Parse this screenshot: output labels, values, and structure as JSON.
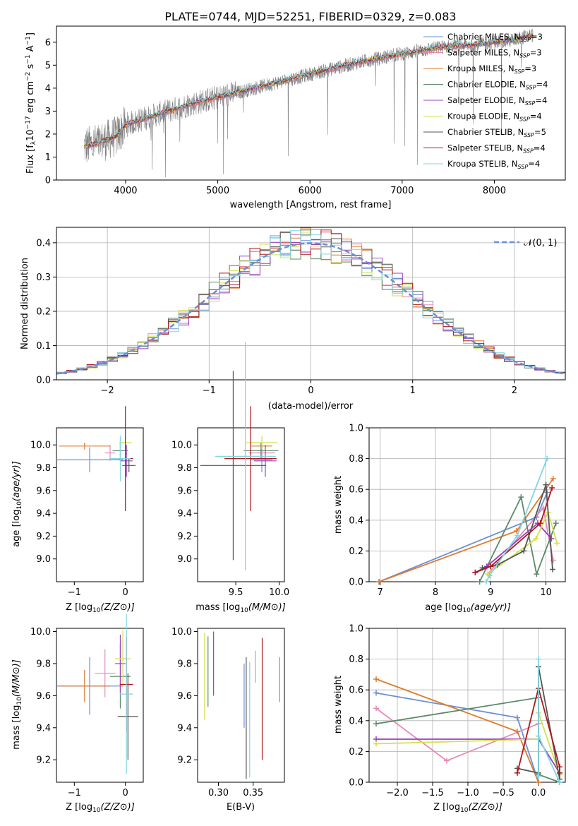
{
  "title": "PLATE=0744, MJD=52251, FIBERID=0329, z=0.083",
  "colors": {
    "chabrier_miles": "#6a8fd8",
    "salpeter_miles": "#e58ab8",
    "kroupa_miles": "#e07b2a",
    "chabrier_elodie": "#5a8a6a",
    "salpeter_elodie": "#9b3fbf",
    "kroupa_elodie": "#d4e04a",
    "chabrier_stelib": "#555555",
    "salpeter_stelib": "#b01818",
    "kroupa_stelib": "#7fd6e0",
    "data": "#808080",
    "normal": "#6a8fd8"
  },
  "chart_data": [
    {
      "id": "spectrum",
      "type": "line",
      "xlabel": "wavelength [Angstrom, rest frame]",
      "xlim": [
        3250,
        8770
      ],
      "ylim": [
        0,
        6.7
      ],
      "xticks": [
        "4000",
        "5000",
        "6000",
        "7000",
        "8000"
      ],
      "yticks": [
        "0",
        "1",
        "2",
        "3",
        "4",
        "5",
        "6"
      ],
      "xtick_values": [
        4000,
        5000,
        6000,
        7000,
        8000
      ],
      "ytick_values": [
        0,
        1,
        2,
        3,
        4,
        5,
        6
      ],
      "legend_position": "top-right",
      "legend": [
        {
          "pre": "Chabrier MILES, N",
          "sub": "SSP",
          "post": "=3",
          "color": "#6a8fd8"
        },
        {
          "pre": "Salpeter MILES, N",
          "sub": "SSP",
          "post": "=3",
          "color": "#e58ab8"
        },
        {
          "pre": "Kroupa MILES, N",
          "sub": "SSP",
          "post": "=3",
          "color": "#e07b2a"
        },
        {
          "pre": "Chabrier ELODIE, N",
          "sub": "SSP",
          "post": "=4",
          "color": "#5a8a6a"
        },
        {
          "pre": "Salpeter ELODIE, N",
          "sub": "SSP",
          "post": "=4",
          "color": "#9b3fbf"
        },
        {
          "pre": "Kroupa ELODIE, N",
          "sub": "SSP",
          "post": "=4",
          "color": "#d4e04a"
        },
        {
          "pre": "Chabrier STELIB, N",
          "sub": "SSP",
          "post": "=5",
          "color": "#555555"
        },
        {
          "pre": "Salpeter STELIB, N",
          "sub": "SSP",
          "post": "=4",
          "color": "#b01818"
        },
        {
          "pre": "Kroupa STELIB, N",
          "sub": "SSP",
          "post": "=4",
          "color": "#7fd6e0"
        }
      ],
      "continuum": [
        [
          3550,
          1.45
        ],
        [
          3700,
          1.6
        ],
        [
          3900,
          1.9
        ],
        [
          4000,
          2.4
        ],
        [
          4300,
          2.8
        ],
        [
          4700,
          3.3
        ],
        [
          5000,
          3.6
        ],
        [
          5500,
          4.1
        ],
        [
          6000,
          4.6
        ],
        [
          6500,
          5.1
        ],
        [
          7000,
          5.5
        ],
        [
          7450,
          5.8
        ],
        [
          7800,
          5.9
        ],
        [
          8200,
          6.1
        ],
        [
          8400,
          6.3
        ]
      ]
    },
    {
      "id": "residuals",
      "type": "step",
      "xlabel": "(data-model)/error",
      "ylabel": "Normed distribution",
      "xlim": [
        -2.5,
        2.5
      ],
      "ylim": [
        0,
        0.445
      ],
      "xticks": [
        "−2",
        "−1",
        "0",
        "1",
        "2"
      ],
      "yticks": [
        "0.0",
        "0.1",
        "0.2",
        "0.3",
        "0.4"
      ],
      "xtick_values": [
        -2,
        -1,
        0,
        1,
        2
      ],
      "ytick_values": [
        0,
        0.1,
        0.2,
        0.3,
        0.4
      ],
      "grid": true,
      "legend_position": "top-right",
      "legend_label": "𝒩(0, 1)",
      "bin_width": 0.1,
      "bin_start": -2.5
    },
    {
      "id": "age_vs_Z",
      "type": "errorbar",
      "xlabel_pre": "Z [log",
      "xlabel_sub": "10",
      "xlabel_post": "(Z/Z⊙)]",
      "ylabel_pre": "age  [log",
      "ylabel_sub": "10",
      "ylabel_post": "(age/yr)]",
      "xlim": [
        -1.35,
        0.35
      ],
      "ylim": [
        8.8,
        10.15
      ],
      "xticks": [
        "−1",
        "0"
      ],
      "yticks": [
        "9.0",
        "9.2",
        "9.4",
        "9.6",
        "9.8",
        "10.0"
      ],
      "xtick_values": [
        -1,
        0
      ],
      "ytick_values": [
        9.0,
        9.2,
        9.4,
        9.6,
        9.8,
        10.0
      ],
      "points": [
        {
          "x": -0.7,
          "xerr": 0.65,
          "y": 9.87,
          "yerr": 0.11,
          "c": "#6a8fd8"
        },
        {
          "x": -0.3,
          "xerr": 0.1,
          "y": 9.93,
          "yerr": 0.07,
          "c": "#e58ab8"
        },
        {
          "x": -0.8,
          "xerr": 0.5,
          "y": 9.99,
          "yerr": 0.03,
          "c": "#e07b2a"
        },
        {
          "x": -0.1,
          "xerr": 0.15,
          "y": 9.95,
          "yerr": 0.07,
          "c": "#5a8a6a"
        },
        {
          "x": 0.02,
          "xerr": 0.12,
          "y": 9.86,
          "yerr": 0.14,
          "c": "#9b3fbf"
        },
        {
          "x": 0.0,
          "xerr": 0.12,
          "y": 10.02,
          "yerr": 0.06,
          "c": "#d4e04a"
        },
        {
          "x": 0.07,
          "xerr": 0.13,
          "y": 9.82,
          "yerr": 0.06,
          "c": "#555555"
        },
        {
          "x": 0.0,
          "xerr": 0.15,
          "y": 9.88,
          "yerr": 0.46,
          "c": "#b01818"
        },
        {
          "x": -0.1,
          "xerr": 0.2,
          "y": 9.88,
          "yerr": 0.2,
          "c": "#7fd6e0"
        }
      ]
    },
    {
      "id": "age_vs_mass",
      "type": "errorbar",
      "xlabel_pre": "mass [log",
      "xlabel_sub": "10",
      "xlabel_post": "(M/M⊙)]",
      "xlim": [
        9.06,
        10.06
      ],
      "ylim": [
        8.8,
        10.15
      ],
      "xticks": [
        "9.5",
        "10.0"
      ],
      "yticks": [
        "9.0",
        "9.2",
        "9.4",
        "9.6",
        "9.8",
        "10.0"
      ],
      "xtick_values": [
        9.5,
        10.0
      ],
      "ytick_values": [
        9.0,
        9.2,
        9.4,
        9.6,
        9.8,
        10.0
      ],
      "points": [
        {
          "x": 9.8,
          "xerr": 0.12,
          "y": 9.87,
          "yerr": 0.11,
          "c": "#6a8fd8"
        },
        {
          "x": 9.8,
          "xerr": 0.15,
          "y": 9.93,
          "yerr": 0.07,
          "c": "#e58ab8"
        },
        {
          "x": 9.8,
          "xerr": 0.12,
          "y": 9.99,
          "yerr": 0.03,
          "c": "#e07b2a"
        },
        {
          "x": 9.79,
          "xerr": 0.2,
          "y": 9.95,
          "yerr": 0.07,
          "c": "#5a8a6a"
        },
        {
          "x": 9.84,
          "xerr": 0.13,
          "y": 9.86,
          "yerr": 0.14,
          "c": "#9b3fbf"
        },
        {
          "x": 9.8,
          "xerr": 0.18,
          "y": 10.02,
          "yerr": 0.06,
          "c": "#d4e04a"
        },
        {
          "x": 9.47,
          "xerr": 0.38,
          "y": 9.82,
          "yerr": 0.83,
          "c": "#555555"
        },
        {
          "x": 9.67,
          "xerr": 0.3,
          "y": 9.88,
          "yerr": 0.46,
          "c": "#b01818"
        },
        {
          "x": 9.61,
          "xerr": 0.35,
          "y": 9.9,
          "yerr": 1.0,
          "c": "#7fd6e0"
        }
      ]
    },
    {
      "id": "weight_vs_age",
      "type": "line",
      "xlabel_pre": "age  [log",
      "xlabel_sub": "10",
      "xlabel_post": "(age/yr)]",
      "ylabel": "mass weight",
      "xlim": [
        6.8,
        10.35
      ],
      "ylim": [
        0,
        1.0
      ],
      "xticks": [
        "7",
        "8",
        "9",
        "10"
      ],
      "yticks": [
        "0.0",
        "0.2",
        "0.4",
        "0.6",
        "0.8",
        "1.0"
      ],
      "xtick_values": [
        7,
        8,
        9,
        10
      ],
      "ytick_values": [
        0,
        0.2,
        0.4,
        0.6,
        0.8,
        1.0
      ],
      "grid": true,
      "series": [
        {
          "c": "#6a8fd8",
          "x": [
            6.98,
            9.83,
            10.02
          ],
          "y": [
            0.0,
            0.42,
            0.58
          ]
        },
        {
          "c": "#e58ab8",
          "x": [
            8.95,
            9.95,
            10.13
          ],
          "y": [
            0.05,
            0.48,
            0.14
          ]
        },
        {
          "c": "#e07b2a",
          "x": [
            6.98,
            9.47,
            10.13
          ],
          "y": [
            0.0,
            0.33,
            0.67
          ]
        },
        {
          "c": "#5a8a6a",
          "x": [
            8.8,
            9.55,
            9.83,
            10.18
          ],
          "y": [
            0.0,
            0.55,
            0.05,
            0.38
          ]
        },
        {
          "c": "#9b3fbf",
          "x": [
            8.72,
            8.93,
            9.85,
            10.1
          ],
          "y": [
            0.06,
            0.1,
            0.38,
            0.28
          ]
        },
        {
          "c": "#d4e04a",
          "x": [
            8.95,
            9.82,
            10.04,
            10.2
          ],
          "y": [
            0.05,
            0.28,
            0.45,
            0.25
          ]
        },
        {
          "c": "#555555",
          "x": [
            8.85,
            9.12,
            9.6,
            10.0,
            10.12
          ],
          "y": [
            0.09,
            0.11,
            0.2,
            0.63,
            0.08
          ]
        },
        {
          "c": "#b01818",
          "x": [
            8.72,
            9.0,
            9.9,
            10.11
          ],
          "y": [
            0.06,
            0.1,
            0.38,
            0.61
          ]
        },
        {
          "c": "#7fd6e0",
          "x": [
            8.92,
            8.98,
            9.48,
            10.02
          ],
          "y": [
            0.0,
            0.04,
            0.3,
            0.8
          ]
        }
      ]
    },
    {
      "id": "mass_vs_Z",
      "type": "errorbar",
      "xlabel_pre": "Z [log",
      "xlabel_sub": "10",
      "xlabel_post": "(Z/Z⊙)]",
      "ylabel_pre": "mass [log",
      "ylabel_sub": "10",
      "ylabel_post": "(M/M⊙)]",
      "xlim": [
        -1.35,
        0.35
      ],
      "ylim": [
        9.06,
        10.02
      ],
      "xticks": [
        "−1",
        "0"
      ],
      "yticks": [
        "9.2",
        "9.4",
        "9.6",
        "9.8",
        "10.0"
      ],
      "xtick_values": [
        -1,
        0
      ],
      "ytick_values": [
        9.2,
        9.4,
        9.6,
        9.8,
        10.0
      ],
      "points": [
        {
          "x": -0.7,
          "xerr": 0.65,
          "y": 9.66,
          "yerr": 0.18,
          "c": "#6a8fd8"
        },
        {
          "x": -0.4,
          "xerr": 0.2,
          "y": 9.74,
          "yerr": 0.15,
          "c": "#e58ab8"
        },
        {
          "x": -0.8,
          "xerr": 0.5,
          "y": 9.66,
          "yerr": 0.1,
          "c": "#e07b2a"
        },
        {
          "x": -0.1,
          "xerr": 0.2,
          "y": 9.72,
          "yerr": 0.2,
          "c": "#5a8a6a"
        },
        {
          "x": -0.1,
          "xerr": 0.1,
          "y": 9.8,
          "yerr": 0.18,
          "c": "#9b3fbf"
        },
        {
          "x": -0.05,
          "xerr": 0.15,
          "y": 9.83,
          "yerr": 0.18,
          "c": "#d4e04a"
        },
        {
          "x": 0.05,
          "xerr": 0.2,
          "y": 9.47,
          "yerr": 0.27,
          "c": "#555555"
        },
        {
          "x": 0.02,
          "xerr": 0.13,
          "y": 9.67,
          "yerr": 0.3,
          "c": "#b01818"
        },
        {
          "x": 0.02,
          "xerr": 0.13,
          "y": 9.61,
          "yerr": 0.5,
          "c": "#7fd6e0"
        }
      ]
    },
    {
      "id": "mass_vs_ebv",
      "type": "errorbar",
      "xlabel": "E(B-V)",
      "xlim": [
        0.27,
        0.395
      ],
      "ylim": [
        9.06,
        10.02
      ],
      "xticks": [
        "0.30",
        "0.35"
      ],
      "yticks": [
        "9.2",
        "9.4",
        "9.6",
        "9.8",
        "10.0"
      ],
      "xtick_values": [
        0.3,
        0.35
      ],
      "ytick_values": [
        9.2,
        9.4,
        9.6,
        9.8,
        10.0
      ],
      "points": [
        {
          "x": 0.337,
          "xerr": 0,
          "y": 9.6,
          "yerr": 0.2,
          "c": "#6a8fd8"
        },
        {
          "x": 0.353,
          "xerr": 0,
          "y": 9.78,
          "yerr": 0.1,
          "c": "#e58ab8"
        },
        {
          "x": 0.388,
          "xerr": 0,
          "y": 9.7,
          "yerr": 0.14,
          "c": "#e07b2a"
        },
        {
          "x": 0.285,
          "xerr": 0,
          "y": 9.75,
          "yerr": 0.22,
          "c": "#5a8a6a"
        },
        {
          "x": 0.293,
          "xerr": 0,
          "y": 9.8,
          "yerr": 0.2,
          "c": "#9b3fbf"
        },
        {
          "x": 0.28,
          "xerr": 0,
          "y": 9.72,
          "yerr": 0.27,
          "c": "#d4e04a"
        },
        {
          "x": 0.34,
          "xerr": 0,
          "y": 9.46,
          "yerr": 0.38,
          "c": "#555555"
        },
        {
          "x": 0.363,
          "xerr": 0,
          "y": 9.58,
          "yerr": 0.38,
          "c": "#b01818"
        },
        {
          "x": 0.345,
          "xerr": 0,
          "y": 9.45,
          "yerr": 0.36,
          "c": "#7fd6e0"
        }
      ]
    },
    {
      "id": "weight_vs_Z",
      "type": "line",
      "xlabel_pre": "Z [log",
      "xlabel_sub": "10",
      "xlabel_post": "(Z/Z⊙)]",
      "ylabel": "mass weight",
      "xlim": [
        -2.4,
        0.38
      ],
      "ylim": [
        0,
        1.0
      ],
      "xticks": [
        "−2.0",
        "−1.5",
        "−1.0",
        "−0.5",
        "0.0"
      ],
      "yticks": [
        "0.0",
        "0.2",
        "0.4",
        "0.6",
        "0.8",
        "1.0"
      ],
      "xtick_values": [
        -2.0,
        -1.5,
        -1.0,
        -0.5,
        0.0
      ],
      "ytick_values": [
        0,
        0.2,
        0.4,
        0.6,
        0.8,
        1.0
      ],
      "grid": true,
      "series": [
        {
          "c": "#6a8fd8",
          "x": [
            -2.3,
            -0.3,
            0.0
          ],
          "y": [
            0.58,
            0.42,
            0.0
          ]
        },
        {
          "c": "#e58ab8",
          "x": [
            -2.3,
            -1.3,
            0.0
          ],
          "y": [
            0.48,
            0.14,
            0.38
          ]
        },
        {
          "c": "#e07b2a",
          "x": [
            -2.3,
            -0.3,
            0.0
          ],
          "y": [
            0.67,
            0.33,
            0.0
          ]
        },
        {
          "c": "#5a8a6a",
          "x": [
            -2.3,
            0.0,
            0.0,
            0.3
          ],
          "y": [
            0.38,
            0.55,
            0.05,
            0.0
          ]
        },
        {
          "c": "#9b3fbf",
          "x": [
            -2.3,
            0.0,
            0.3,
            0.3
          ],
          "y": [
            0.28,
            0.28,
            0.06,
            0.1
          ]
        },
        {
          "c": "#d4e04a",
          "x": [
            -2.3,
            0.0,
            0.0,
            0.3
          ],
          "y": [
            0.25,
            0.28,
            0.45,
            0.05
          ]
        },
        {
          "c": "#555555",
          "x": [
            -0.3,
            0.0,
            0.0,
            0.3,
            0.3
          ],
          "y": [
            0.09,
            0.06,
            0.75,
            0.02,
            0.1
          ]
        },
        {
          "c": "#b01818",
          "x": [
            -0.3,
            0.0,
            0.3,
            0.3
          ],
          "y": [
            0.06,
            0.61,
            0.1,
            0.06
          ]
        },
        {
          "c": "#7fd6e0",
          "x": [
            0.0,
            0.0,
            0.0,
            0.3
          ],
          "y": [
            0.8,
            0.04,
            0.3,
            0.0
          ]
        }
      ]
    }
  ]
}
